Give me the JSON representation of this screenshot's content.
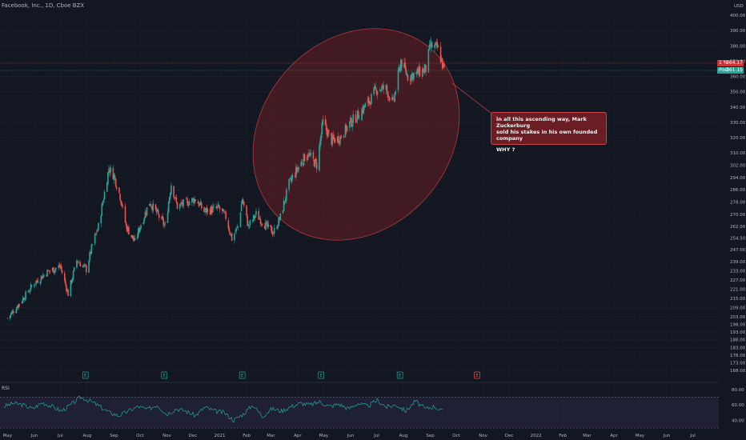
{
  "header": {
    "title": "Facebook, Inc., 1D, Cboe BZX"
  },
  "price_axis": {
    "currency": "USD",
    "last_price_tag": {
      "label": "1 %",
      "value": "364.17"
    },
    "post_price_tag": {
      "label": "Post",
      "value": "361.15"
    }
  },
  "annotation": {
    "line1": "in all this ascending way, Mark Zuckerburg",
    "line2": "sold his stakes in his own founded company",
    "line3": "WHY ?"
  },
  "rsi": {
    "label": "RSI"
  },
  "colors": {
    "up": "#26a69a",
    "down": "#ef5350",
    "background": "#131722",
    "rsi_line": "#26a69a",
    "ellipse_fill": "#7a2024"
  },
  "chart_data": {
    "type": "candlestick",
    "title": "Facebook, Inc., 1D, Cboe BZX",
    "y_ticks": [
      400,
      390,
      380,
      370,
      360,
      350,
      340,
      330,
      320,
      310,
      302,
      294,
      286,
      278,
      270,
      262,
      254.5,
      247,
      239,
      233,
      227,
      221,
      215,
      209,
      203,
      198,
      193,
      188,
      183,
      178,
      173,
      168
    ],
    "ylim": [
      168,
      400
    ],
    "x_ticks": [
      "May",
      "Jun",
      "Jul",
      "Aug",
      "Sep",
      "Oct",
      "Nov",
      "Dec",
      "2021",
      "Feb",
      "Mar",
      "Apr",
      "May",
      "Jun",
      "Jul",
      "Aug",
      "Sep",
      "Oct",
      "Nov",
      "Dec",
      "2022",
      "Feb",
      "Mar",
      "Apr",
      "May",
      "Jun",
      "Jul"
    ],
    "close_path": [
      [
        "2020-05-01",
        202
      ],
      [
        "2020-05-15",
        212
      ],
      [
        "2020-06-01",
        225
      ],
      [
        "2020-06-15",
        232
      ],
      [
        "2020-07-01",
        236
      ],
      [
        "2020-07-10",
        218
      ],
      [
        "2020-07-20",
        240
      ],
      [
        "2020-07-31",
        234
      ],
      [
        "2020-08-07",
        250
      ],
      [
        "2020-08-14",
        262
      ],
      [
        "2020-08-26",
        300
      ],
      [
        "2020-09-01",
        295
      ],
      [
        "2020-09-08",
        282
      ],
      [
        "2020-09-15",
        262
      ],
      [
        "2020-09-25",
        252
      ],
      [
        "2020-10-01",
        262
      ],
      [
        "2020-10-12",
        278
      ],
      [
        "2020-10-19",
        272
      ],
      [
        "2020-10-30",
        262
      ],
      [
        "2020-11-06",
        290
      ],
      [
        "2020-11-13",
        275
      ],
      [
        "2020-11-25",
        278
      ],
      [
        "2020-12-04",
        280
      ],
      [
        "2020-12-14",
        272
      ],
      [
        "2020-12-31",
        274
      ],
      [
        "2021-01-08",
        268
      ],
      [
        "2021-01-15",
        254
      ],
      [
        "2021-01-22",
        262
      ],
      [
        "2021-01-27",
        280
      ],
      [
        "2021-02-03",
        262
      ],
      [
        "2021-02-12",
        270
      ],
      [
        "2021-02-24",
        262
      ],
      [
        "2021-03-04",
        258
      ],
      [
        "2021-03-12",
        268
      ],
      [
        "2021-03-22",
        290
      ],
      [
        "2021-04-01",
        300
      ],
      [
        "2021-04-12",
        310
      ],
      [
        "2021-04-23",
        302
      ],
      [
        "2021-04-30",
        330
      ],
      [
        "2021-05-10",
        318
      ],
      [
        "2021-05-20",
        320
      ],
      [
        "2021-06-01",
        330
      ],
      [
        "2021-06-10",
        335
      ],
      [
        "2021-06-24",
        345
      ],
      [
        "2021-07-01",
        352
      ],
      [
        "2021-07-12",
        352
      ],
      [
        "2021-07-20",
        342
      ],
      [
        "2021-07-29",
        370
      ],
      [
        "2021-08-06",
        360
      ],
      [
        "2021-08-16",
        362
      ],
      [
        "2021-08-27",
        365
      ],
      [
        "2021-09-01",
        380
      ],
      [
        "2021-09-10",
        378
      ],
      [
        "2021-09-17",
        364
      ]
    ],
    "last_price": 364.17,
    "post_market_price": 361.15,
    "earnings_markers": [
      "2020-07-30",
      "2020-10-29",
      "2021-01-27",
      "2021-04-28",
      "2021-07-28",
      "2021-10-25"
    ],
    "rsi": {
      "ylim": [
        30,
        85
      ],
      "ticks": [
        80,
        60,
        40
      ],
      "overbought": 70,
      "oversold": 30,
      "values": [
        58,
        62,
        60,
        55,
        63,
        58,
        52,
        60,
        70,
        65,
        58,
        50,
        46,
        52,
        58,
        54,
        60,
        48,
        55,
        52,
        46,
        57,
        52,
        50,
        40,
        48,
        60,
        45,
        55,
        52,
        58,
        62,
        60,
        64,
        58,
        61,
        55,
        62,
        58,
        66,
        57,
        60,
        52,
        65,
        55,
        58,
        50
      ]
    }
  }
}
